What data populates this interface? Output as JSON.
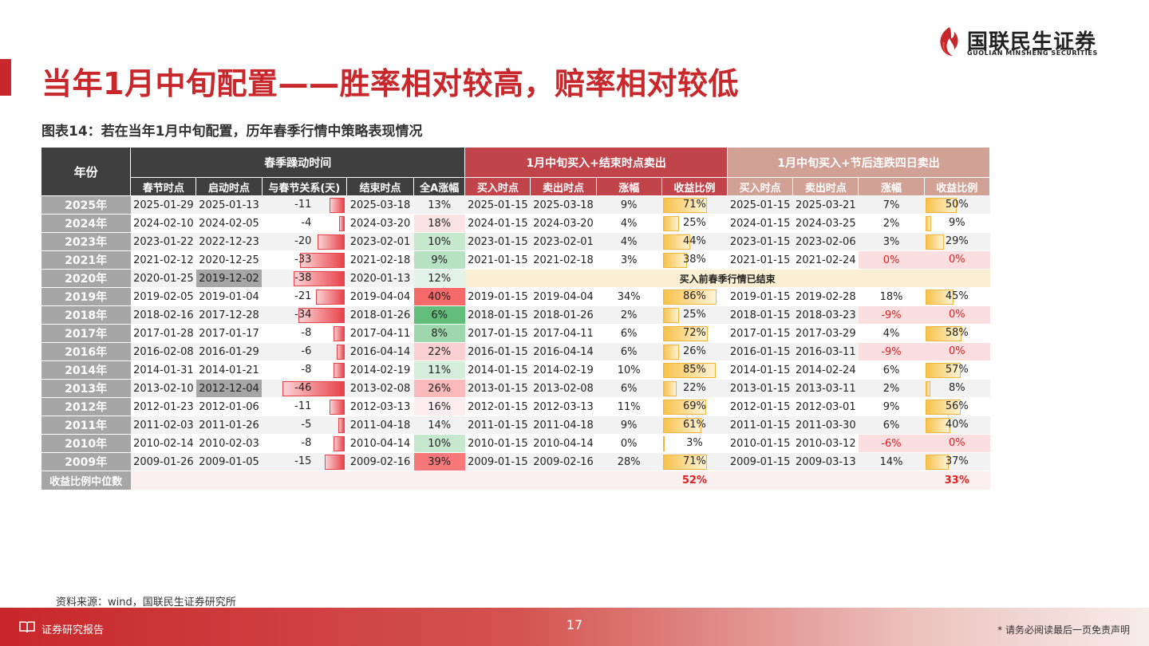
{
  "title": "当年1月中旬配置——胜率相对较高，赔率相对较低",
  "logo": {
    "cn": "国联民生证券",
    "en": "GUOLIAN MINSHENG SECURITIES"
  },
  "chart_title": "图表14：若在当年1月中旬配置，历年春季行情中策略表现情况",
  "headers": {
    "year": "年份",
    "spring": "春季躁动时间",
    "strategy1": "1月中旬买入+结束时点卖出",
    "strategy2": "1月中旬买入+节后连跌四日卖出",
    "sub": [
      "春节时点",
      "启动时点",
      "与春节关系(天)",
      "结束时点",
      "全A涨幅",
      "买入时点",
      "卖出时点",
      "涨幅",
      "收益比例",
      "买入时点",
      "卖出时点",
      "涨幅",
      "收益比例"
    ]
  },
  "colors": {
    "accent": "#c8272b",
    "negative_bar": "#e8424a",
    "positive_bar": "#f7c24b",
    "green_strong": "#63be7b",
    "red_strong": "#f8696b"
  },
  "note_2020": "买入前春季行情已结束",
  "rows": [
    {
      "year": "2025年",
      "spring": "2025-01-29",
      "start": "2025-01-13",
      "rel": "-11",
      "end": "2025-03-18",
      "allA": "13%",
      "allA_bg": "#f2f2f2",
      "buy1": "2025-01-15",
      "sell1": "2025-03-18",
      "gain1": "9%",
      "ratio1": "71%",
      "buy2": "2025-01-15",
      "sell2": "2025-03-21",
      "gain2": "7%",
      "gain2_bg": "",
      "ratio2": "50%"
    },
    {
      "year": "2024年",
      "spring": "2024-02-10",
      "start": "2024-02-05",
      "rel": "-4",
      "end": "2024-03-20",
      "allA": "18%",
      "allA_bg": "#fbe3e4",
      "buy1": "2024-01-15",
      "sell1": "2024-03-20",
      "gain1": "4%",
      "ratio1": "25%",
      "buy2": "2024-01-15",
      "sell2": "2024-03-25",
      "gain2": "2%",
      "gain2_bg": "",
      "ratio2": "9%"
    },
    {
      "year": "2023年",
      "spring": "2023-01-22",
      "start": "2022-12-23",
      "rel": "-20",
      "end": "2023-02-01",
      "allA": "10%",
      "allA_bg": "#c6e8cf",
      "buy1": "2023-01-15",
      "sell1": "2023-02-01",
      "gain1": "4%",
      "ratio1": "44%",
      "buy2": "2023-01-15",
      "sell2": "2023-02-06",
      "gain2": "3%",
      "gain2_bg": "",
      "ratio2": "29%"
    },
    {
      "year": "2021年",
      "spring": "2021-02-12",
      "start": "2020-12-25",
      "rel": "-33",
      "end": "2021-02-18",
      "allA": "9%",
      "allA_bg": "#b6e1c2",
      "buy1": "2021-01-15",
      "sell1": "2021-02-18",
      "gain1": "3%",
      "ratio1": "38%",
      "buy2": "2021-01-15",
      "sell2": "2021-02-24",
      "gain2": "0%",
      "gain2_bg": "#fbdfe0",
      "ratio2": "0%"
    },
    {
      "year": "2020年",
      "spring": "2020-01-25",
      "start": "2019-12-02",
      "rel": "-38",
      "end": "2020-01-13",
      "allA": "12%",
      "allA_bg": "#e4f3e8",
      "note": true
    },
    {
      "year": "2019年",
      "spring": "2019-02-05",
      "start": "2019-01-04",
      "rel": "-21",
      "end": "2019-04-04",
      "allA": "40%",
      "allA_bg": "#f8696b",
      "buy1": "2019-01-15",
      "sell1": "2019-04-04",
      "gain1": "34%",
      "ratio1": "86%",
      "buy2": "2019-01-15",
      "sell2": "2019-02-28",
      "gain2": "18%",
      "gain2_bg": "",
      "ratio2": "45%"
    },
    {
      "year": "2018年",
      "spring": "2018-02-16",
      "start": "2017-12-28",
      "rel": "-34",
      "end": "2018-01-26",
      "allA": "6%",
      "allA_bg": "#63be7b",
      "buy1": "2018-01-15",
      "sell1": "2018-01-26",
      "gain1": "2%",
      "ratio1": "25%",
      "buy2": "2018-01-15",
      "sell2": "2018-03-23",
      "gain2": "-9%",
      "gain2_bg": "#fbdfe0",
      "ratio2": "0%"
    },
    {
      "year": "2017年",
      "spring": "2017-01-28",
      "start": "2017-01-17",
      "rel": "-8",
      "end": "2017-04-11",
      "allA": "8%",
      "allA_bg": "#9ed6ad",
      "buy1": "2017-01-15",
      "sell1": "2017-04-11",
      "gain1": "6%",
      "ratio1": "72%",
      "buy2": "2017-01-15",
      "sell2": "2017-03-29",
      "gain2": "4%",
      "gain2_bg": "",
      "ratio2": "58%"
    },
    {
      "year": "2016年",
      "spring": "2016-02-08",
      "start": "2016-01-29",
      "rel": "-6",
      "end": "2016-04-14",
      "allA": "22%",
      "allA_bg": "#fbd0d2",
      "buy1": "2016-01-15",
      "sell1": "2016-04-14",
      "gain1": "6%",
      "ratio1": "26%",
      "buy2": "2016-01-15",
      "sell2": "2016-03-11",
      "gain2": "-9%",
      "gain2_bg": "#fbdfe0",
      "ratio2": "0%"
    },
    {
      "year": "2014年",
      "spring": "2014-01-31",
      "start": "2014-01-21",
      "rel": "-8",
      "end": "2014-02-19",
      "allA": "11%",
      "allA_bg": "#d4eedb",
      "buy1": "2014-01-15",
      "sell1": "2014-02-19",
      "gain1": "10%",
      "ratio1": "85%",
      "buy2": "2014-01-15",
      "sell2": "2014-02-24",
      "gain2": "6%",
      "gain2_bg": "",
      "ratio2": "57%"
    },
    {
      "year": "2013年",
      "spring": "2013-02-10",
      "start": "2012-12-04",
      "rel": "-46",
      "end": "2013-02-08",
      "allA": "26%",
      "allA_bg": "#fab9bb",
      "buy1": "2013-01-15",
      "sell1": "2013-02-08",
      "gain1": "6%",
      "ratio1": "22%",
      "buy2": "2013-01-15",
      "sell2": "2013-03-11",
      "gain2": "2%",
      "gain2_bg": "",
      "ratio2": "8%"
    },
    {
      "year": "2012年",
      "spring": "2012-01-23",
      "start": "2012-01-06",
      "rel": "-11",
      "end": "2012-03-13",
      "allA": "16%",
      "allA_bg": "#fcedee",
      "buy1": "2012-01-15",
      "sell1": "2012-03-13",
      "gain1": "11%",
      "ratio1": "69%",
      "buy2": "2012-01-15",
      "sell2": "2012-03-01",
      "gain2": "9%",
      "gain2_bg": "",
      "ratio2": "56%"
    },
    {
      "year": "2011年",
      "spring": "2011-02-03",
      "start": "2011-01-26",
      "rel": "-5",
      "end": "2011-04-18",
      "allA": "14%",
      "allA_bg": "",
      "buy1": "2011-01-15",
      "sell1": "2011-04-18",
      "gain1": "9%",
      "ratio1": "61%",
      "buy2": "2011-01-15",
      "sell2": "2011-03-30",
      "gain2": "6%",
      "gain2_bg": "",
      "ratio2": "40%"
    },
    {
      "year": "2010年",
      "spring": "2010-02-14",
      "start": "2010-02-03",
      "rel": "-8",
      "end": "2010-04-14",
      "allA": "10%",
      "allA_bg": "#c6e8cf",
      "buy1": "2010-01-15",
      "sell1": "2010-04-14",
      "gain1": "0%",
      "ratio1": "3%",
      "buy2": "2010-01-15",
      "sell2": "2010-03-12",
      "gain2": "-6%",
      "gain2_bg": "#fbdfe0",
      "ratio2": "0%"
    },
    {
      "year": "2009年",
      "spring": "2009-01-26",
      "start": "2009-01-05",
      "rel": "-15",
      "end": "2009-02-16",
      "allA": "39%",
      "allA_bg": "#f8777a",
      "buy1": "2009-01-15",
      "sell1": "2009-02-16",
      "gain1": "28%",
      "ratio1": "71%",
      "buy2": "2009-01-15",
      "sell2": "2009-03-13",
      "gain2": "14%",
      "gain2_bg": "",
      "ratio2": "37%"
    }
  ],
  "median": {
    "label": "收益比例中位数",
    "ratio1": "52%",
    "ratio2": "33%"
  },
  "source": "资料来源：wind，国联民生证券研究所",
  "footer": {
    "label": "证券研究报告",
    "page": "17",
    "disclaimer": "* 请务必阅读最后一页免责声明"
  }
}
